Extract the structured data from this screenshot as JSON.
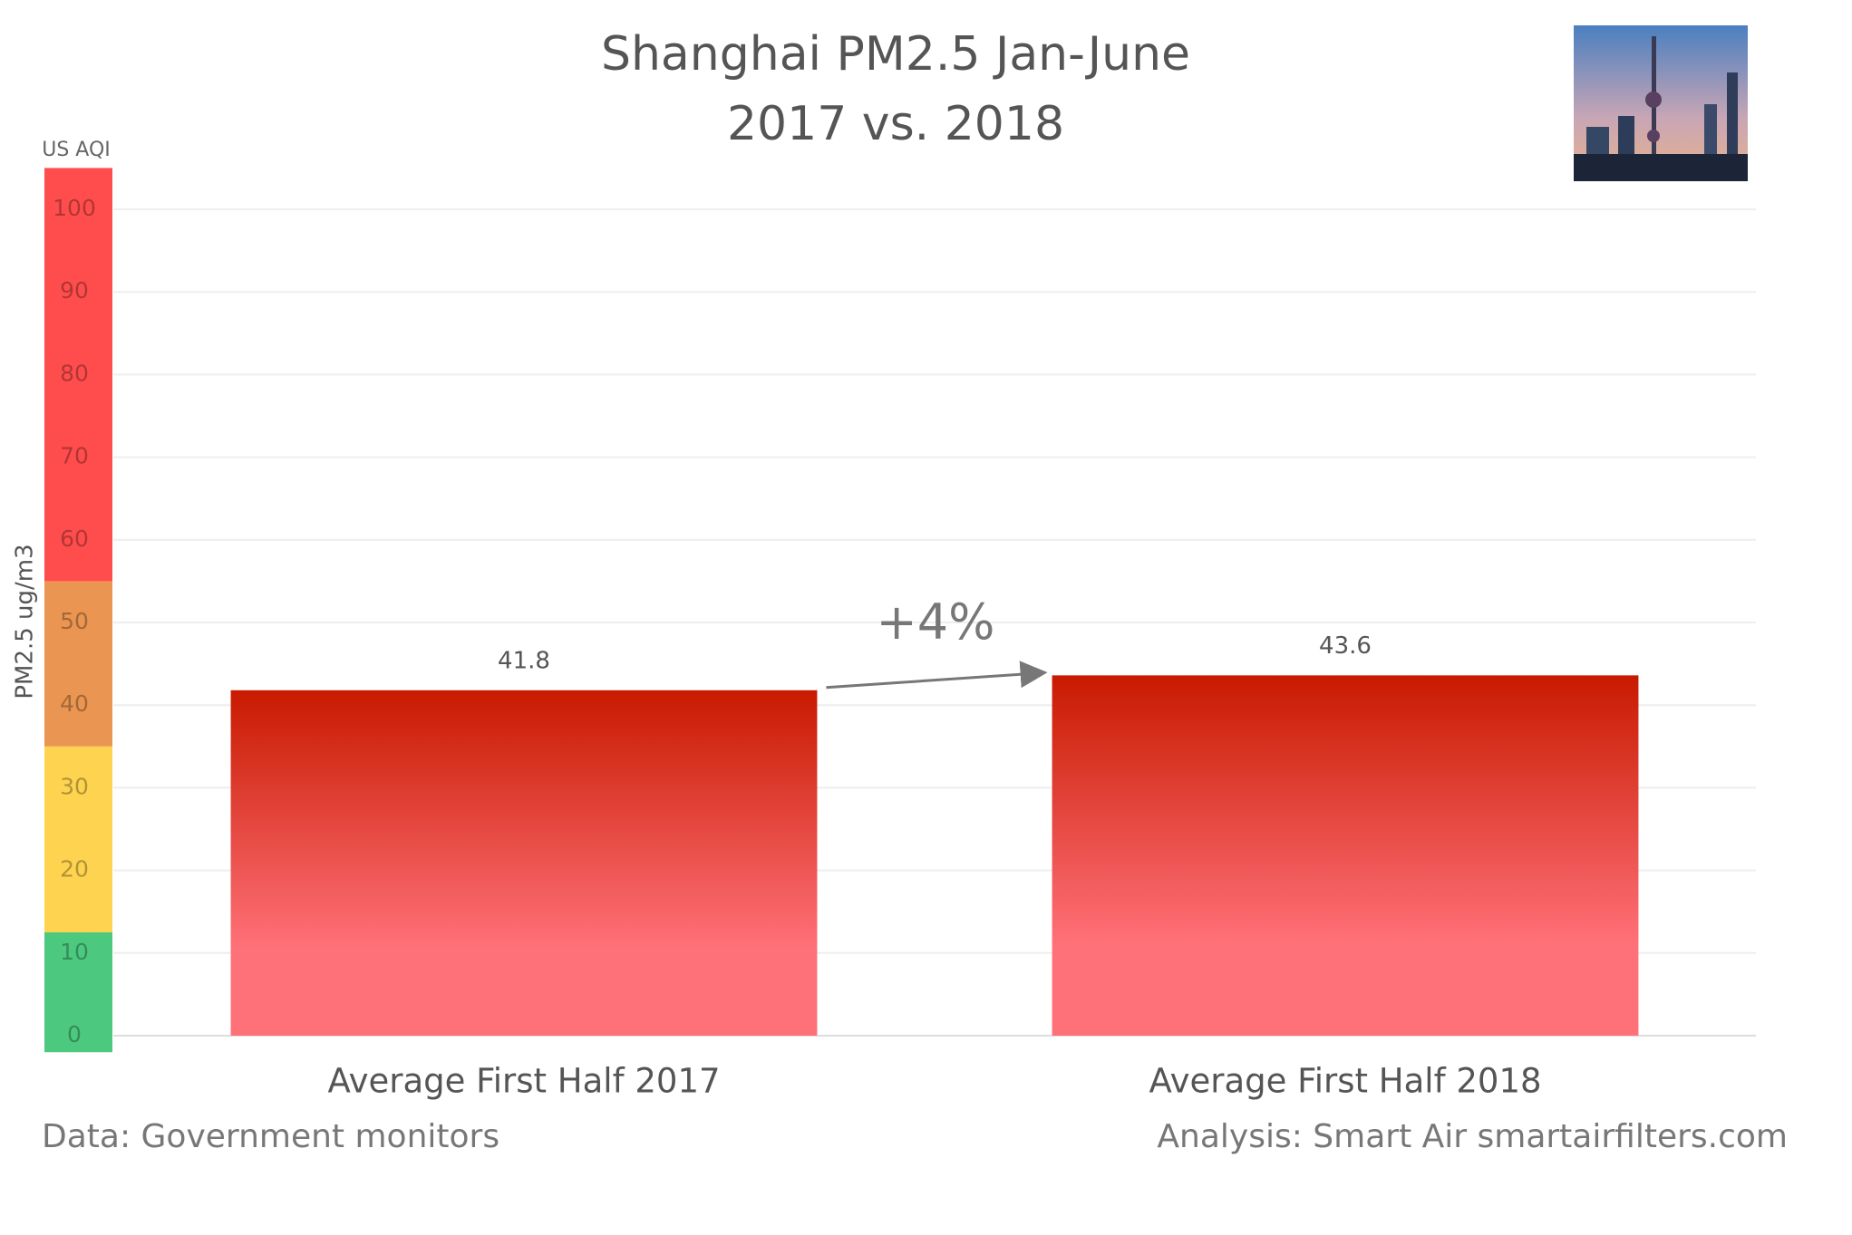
{
  "chart_data": {
    "type": "bar",
    "title": "Shanghai PM2.5 Jan-June",
    "subtitle": "2017 vs. 2018",
    "y_label": "PM2.5 ug/m3",
    "band_label": "US AQI",
    "categories": [
      "Average First Half 2017",
      "Average First Half 2018"
    ],
    "values": [
      41.8,
      43.6
    ],
    "color_top": "#c81a00",
    "color_bottom": "#ff7179",
    "ylim": [
      0,
      100
    ],
    "yticks": [
      0,
      10,
      20,
      30,
      40,
      50,
      60,
      70,
      80,
      90,
      100
    ],
    "grid": true,
    "aqi_bands": [
      {
        "from": -2,
        "to": 12.5,
        "color": "#4cc97f"
      },
      {
        "from": 12.5,
        "to": 35,
        "color": "#fed34f"
      },
      {
        "from": 35,
        "to": 55,
        "color": "#ea9551"
      },
      {
        "from": 55,
        "to": 105,
        "color": "#ff4d4d"
      }
    ],
    "annotation": "+4%",
    "source": "Data: Government monitors",
    "credit": "Analysis: Smart Air smartairfilters.com"
  }
}
